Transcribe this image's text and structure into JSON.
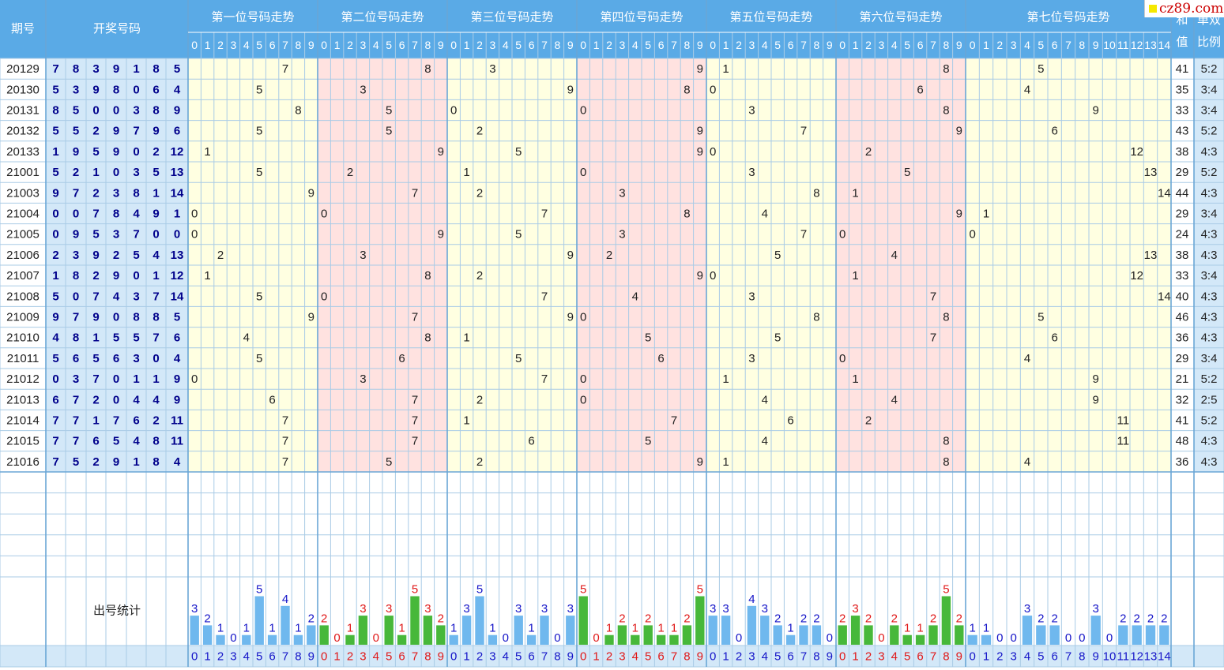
{
  "site": {
    "label": "cz89.com"
  },
  "header": {
    "period_label": "期号",
    "draw_label": "开奖号码",
    "positions": [
      "第一位号码走势",
      "第二位号码走势",
      "第三位号码走势",
      "第四位号码走势",
      "第五位号码走势",
      "第六位号码走势",
      "第七位号码走势"
    ],
    "sum_label": [
      "和",
      "值"
    ],
    "ratio_label": [
      "单双",
      "比例"
    ],
    "stats_label": "出号统计"
  },
  "chart_data": {
    "type": "table",
    "columns": [
      "期号",
      "开奖号码",
      "第一位",
      "第二位",
      "第三位",
      "第四位",
      "第五位",
      "第六位",
      "第七位",
      "和值",
      "单双比例"
    ],
    "digit_ranges": {
      "pos1_6": [
        0,
        9
      ],
      "pos7": [
        0,
        14
      ]
    },
    "rows": [
      {
        "period": "20129",
        "nums": [
          7,
          8,
          3,
          9,
          1,
          8,
          5
        ],
        "sum": 41,
        "ratio": "5:2"
      },
      {
        "period": "20130",
        "nums": [
          5,
          3,
          9,
          8,
          0,
          6,
          4
        ],
        "sum": 35,
        "ratio": "3:4"
      },
      {
        "period": "20131",
        "nums": [
          8,
          5,
          0,
          0,
          3,
          8,
          9
        ],
        "sum": 33,
        "ratio": "3:4"
      },
      {
        "period": "20132",
        "nums": [
          5,
          5,
          2,
          9,
          7,
          9,
          6
        ],
        "sum": 43,
        "ratio": "5:2"
      },
      {
        "period": "20133",
        "nums": [
          1,
          9,
          5,
          9,
          0,
          2,
          12
        ],
        "sum": 38,
        "ratio": "4:3"
      },
      {
        "period": "21001",
        "nums": [
          5,
          2,
          1,
          0,
          3,
          5,
          13
        ],
        "sum": 29,
        "ratio": "5:2"
      },
      {
        "period": "21003",
        "nums": [
          9,
          7,
          2,
          3,
          8,
          1,
          14
        ],
        "sum": 44,
        "ratio": "4:3"
      },
      {
        "period": "21004",
        "nums": [
          0,
          0,
          7,
          8,
          4,
          9,
          1
        ],
        "sum": 29,
        "ratio": "3:4"
      },
      {
        "period": "21005",
        "nums": [
          0,
          9,
          5,
          3,
          7,
          0,
          0
        ],
        "sum": 24,
        "ratio": "4:3"
      },
      {
        "period": "21006",
        "nums": [
          2,
          3,
          9,
          2,
          5,
          4,
          13
        ],
        "sum": 38,
        "ratio": "4:3"
      },
      {
        "period": "21007",
        "nums": [
          1,
          8,
          2,
          9,
          0,
          1,
          12
        ],
        "sum": 33,
        "ratio": "3:4"
      },
      {
        "period": "21008",
        "nums": [
          5,
          0,
          7,
          4,
          3,
          7,
          14
        ],
        "sum": 40,
        "ratio": "4:3"
      },
      {
        "period": "21009",
        "nums": [
          9,
          7,
          9,
          0,
          8,
          8,
          5
        ],
        "sum": 46,
        "ratio": "4:3"
      },
      {
        "period": "21010",
        "nums": [
          4,
          8,
          1,
          5,
          5,
          7,
          6
        ],
        "sum": 36,
        "ratio": "4:3"
      },
      {
        "period": "21011",
        "nums": [
          5,
          6,
          5,
          6,
          3,
          0,
          4
        ],
        "sum": 29,
        "ratio": "3:4"
      },
      {
        "period": "21012",
        "nums": [
          0,
          3,
          7,
          0,
          1,
          1,
          9
        ],
        "sum": 21,
        "ratio": "5:2"
      },
      {
        "period": "21013",
        "nums": [
          6,
          7,
          2,
          0,
          4,
          4,
          9
        ],
        "sum": 32,
        "ratio": "2:5"
      },
      {
        "period": "21014",
        "nums": [
          7,
          7,
          1,
          7,
          6,
          2,
          11
        ],
        "sum": 41,
        "ratio": "5:2"
      },
      {
        "period": "21015",
        "nums": [
          7,
          7,
          6,
          5,
          4,
          8,
          11
        ],
        "sum": 48,
        "ratio": "4:3"
      },
      {
        "period": "21016",
        "nums": [
          7,
          5,
          2,
          9,
          1,
          8,
          4
        ],
        "sum": 36,
        "ratio": "4:3"
      }
    ],
    "counts": [
      [
        3,
        2,
        1,
        0,
        1,
        5,
        1,
        4,
        1,
        2
      ],
      [
        2,
        0,
        1,
        3,
        0,
        3,
        1,
        5,
        3,
        2
      ],
      [
        1,
        3,
        5,
        1,
        0,
        3,
        1,
        3,
        0,
        3
      ],
      [
        5,
        0,
        1,
        2,
        1,
        2,
        1,
        1,
        2,
        5
      ],
      [
        3,
        3,
        0,
        4,
        3,
        2,
        1,
        2,
        2,
        0
      ],
      [
        2,
        3,
        2,
        0,
        2,
        1,
        1,
        2,
        5,
        2
      ],
      [
        1,
        1,
        0,
        0,
        3,
        2,
        2,
        0,
        0,
        3,
        0,
        2,
        2,
        2,
        2
      ]
    ]
  },
  "colors": {
    "header_bg": "#5aaae6",
    "header_text": "#ffffff",
    "grid_line": "#a9cbe6",
    "zone_yellow": "#ffffe1",
    "zone_pink": "#ffe2e0",
    "draw_bg": "#d3e8f8",
    "draw_text": "#00008b",
    "bar_blue": "#6fb8ee",
    "bar_green": "#47b83a",
    "count_blue": "#1414c8",
    "count_red": "#e01818"
  }
}
